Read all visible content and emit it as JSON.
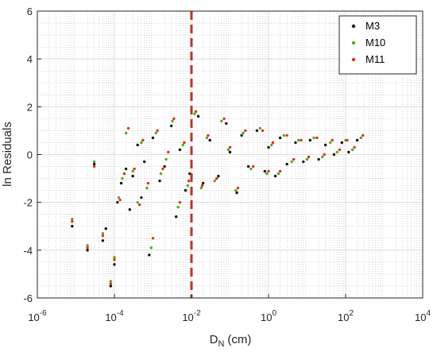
{
  "chart_data": {
    "type": "scatter",
    "xscale": "log",
    "xlim": [
      1e-06,
      10000.0
    ],
    "ylim": [
      -6,
      6
    ],
    "xlabel_main": "D",
    "xlabel_sub": "N",
    "xlabel_unit": "(cm)",
    "ylabel": "ln Residuals",
    "x_ticks": [
      {
        "value": 1e-06,
        "base": "10",
        "exp": "-6"
      },
      {
        "value": 0.0001,
        "base": "10",
        "exp": "-4"
      },
      {
        "value": 0.01,
        "base": "10",
        "exp": "-2"
      },
      {
        "value": 1.0,
        "base": "10",
        "exp": "0"
      },
      {
        "value": 100.0,
        "base": "10",
        "exp": "2"
      },
      {
        "value": 10000.0,
        "base": "10",
        "exp": "4"
      }
    ],
    "y_ticks": [
      {
        "value": -6,
        "label": "-6"
      },
      {
        "value": -4,
        "label": "-4"
      },
      {
        "value": -2,
        "label": "-2"
      },
      {
        "value": 0,
        "label": "0"
      },
      {
        "value": 2,
        "label": "2"
      },
      {
        "value": 4,
        "label": "4"
      },
      {
        "value": 6,
        "label": "6"
      }
    ],
    "grid": true,
    "minor_grid": true,
    "legend_position": "top-right",
    "vline": {
      "x": 0.01,
      "color": "#c0312b",
      "style": "dashed"
    },
    "series": [
      {
        "name": "M3",
        "color": "#111111",
        "points": [
          [
            8e-06,
            -3.0
          ],
          [
            2e-05,
            -4.0
          ],
          [
            3e-05,
            -0.4
          ],
          [
            5e-05,
            -3.6
          ],
          [
            6e-05,
            -3.1
          ],
          [
            8e-05,
            -5.5
          ],
          [
            0.0001,
            -4.6
          ],
          [
            0.00012,
            -2.0
          ],
          [
            0.00015,
            -1.2
          ],
          [
            0.0002,
            -0.6
          ],
          [
            0.00025,
            -2.3
          ],
          [
            0.0003,
            -0.9
          ],
          [
            0.0004,
            0.4
          ],
          [
            0.0005,
            -1.8
          ],
          [
            0.0006,
            -0.3
          ],
          [
            0.0008,
            -4.2
          ],
          [
            0.001,
            0.7
          ],
          [
            0.0015,
            -1.1
          ],
          [
            0.002,
            -0.5
          ],
          [
            0.003,
            1.2
          ],
          [
            0.004,
            -2.6
          ],
          [
            0.005,
            0.2
          ],
          [
            0.007,
            -1.5
          ],
          [
            0.009,
            -0.8
          ],
          [
            0.015,
            1.6
          ],
          [
            0.02,
            -1.2
          ],
          [
            0.03,
            0.6
          ],
          [
            0.05,
            -0.9
          ],
          [
            0.08,
            1.3
          ],
          [
            0.1,
            0.1
          ],
          [
            0.15,
            -1.6
          ],
          [
            0.2,
            0.8
          ],
          [
            0.3,
            -0.5
          ],
          [
            0.5,
            1.0
          ],
          [
            0.8,
            -0.7
          ],
          [
            1.0,
            0.3
          ],
          [
            1.5,
            -0.9
          ],
          [
            2.0,
            0.7
          ],
          [
            3.0,
            -0.4
          ],
          [
            5.0,
            0.5
          ],
          [
            8.0,
            -0.3
          ],
          [
            12,
            0.6
          ],
          [
            20,
            -0.2
          ],
          [
            30,
            0.4
          ],
          [
            50,
            0.0
          ],
          [
            80,
            0.5
          ],
          [
            120,
            0.1
          ],
          [
            200,
            0.6
          ]
        ]
      },
      {
        "name": "M10",
        "color": "#4caf1a",
        "points": [
          [
            8e-06,
            -2.7
          ],
          [
            2e-05,
            -3.8
          ],
          [
            3e-05,
            -0.3
          ],
          [
            5e-05,
            -3.3
          ],
          [
            8e-05,
            -5.3
          ],
          [
            0.0001,
            -4.3
          ],
          [
            0.00013,
            -1.8
          ],
          [
            0.00016,
            -1.0
          ],
          [
            0.0002,
            0.9
          ],
          [
            0.0003,
            -0.7
          ],
          [
            0.0004,
            -2.0
          ],
          [
            0.0005,
            0.5
          ],
          [
            0.0007,
            -1.4
          ],
          [
            0.0009,
            -3.9
          ],
          [
            0.0012,
            0.9
          ],
          [
            0.0016,
            -0.8
          ],
          [
            0.0022,
            -0.2
          ],
          [
            0.0032,
            1.4
          ],
          [
            0.0045,
            -2.2
          ],
          [
            0.006,
            0.4
          ],
          [
            0.008,
            -1.3
          ],
          [
            0.012,
            1.7
          ],
          [
            0.018,
            -1.4
          ],
          [
            0.025,
            0.7
          ],
          [
            0.04,
            -1.1
          ],
          [
            0.06,
            1.4
          ],
          [
            0.09,
            0.2
          ],
          [
            0.14,
            -1.5
          ],
          [
            0.22,
            0.9
          ],
          [
            0.35,
            -0.6
          ],
          [
            0.6,
            1.1
          ],
          [
            0.9,
            -0.8
          ],
          [
            1.2,
            0.4
          ],
          [
            1.8,
            -0.8
          ],
          [
            2.5,
            0.8
          ],
          [
            4.0,
            -0.3
          ],
          [
            6.0,
            0.6
          ],
          [
            10,
            -0.2
          ],
          [
            15,
            0.7
          ],
          [
            25,
            -0.1
          ],
          [
            40,
            0.5
          ],
          [
            60,
            0.1
          ],
          [
            100,
            0.6
          ],
          [
            150,
            0.2
          ],
          [
            250,
            0.7
          ]
        ]
      },
      {
        "name": "M11",
        "color": "#e03018",
        "points": [
          [
            8e-06,
            -2.8
          ],
          [
            2e-05,
            -3.9
          ],
          [
            3e-05,
            -0.5
          ],
          [
            5e-05,
            -3.4
          ],
          [
            8e-05,
            -5.4
          ],
          [
            0.0001,
            -4.4
          ],
          [
            0.00014,
            -1.9
          ],
          [
            0.00018,
            -0.8
          ],
          [
            0.00023,
            1.1
          ],
          [
            0.00033,
            -0.6
          ],
          [
            0.00045,
            -2.1
          ],
          [
            0.00055,
            0.6
          ],
          [
            0.00075,
            -1.2
          ],
          [
            0.001,
            -3.5
          ],
          [
            0.0013,
            1.0
          ],
          [
            0.0018,
            -0.6
          ],
          [
            0.0025,
            0.1
          ],
          [
            0.0035,
            1.5
          ],
          [
            0.005,
            -2.0
          ],
          [
            0.0065,
            0.5
          ],
          [
            0.0085,
            -1.1
          ],
          [
            0.013,
            1.8
          ],
          [
            0.019,
            -1.3
          ],
          [
            0.027,
            0.8
          ],
          [
            0.045,
            -1.0
          ],
          [
            0.07,
            1.5
          ],
          [
            0.1,
            0.3
          ],
          [
            0.16,
            -1.4
          ],
          [
            0.25,
            1.0
          ],
          [
            0.4,
            -0.5
          ],
          [
            0.7,
            1.0
          ],
          [
            1.0,
            -0.7
          ],
          [
            1.3,
            0.5
          ],
          [
            2.0,
            -0.7
          ],
          [
            3.0,
            0.8
          ],
          [
            4.5,
            -0.2
          ],
          [
            7.0,
            0.6
          ],
          [
            11,
            -0.1
          ],
          [
            18,
            0.7
          ],
          [
            28,
            0.0
          ],
          [
            45,
            0.6
          ],
          [
            70,
            0.2
          ],
          [
            110,
            0.6
          ],
          [
            170,
            0.3
          ],
          [
            280,
            0.8
          ]
        ]
      }
    ]
  }
}
